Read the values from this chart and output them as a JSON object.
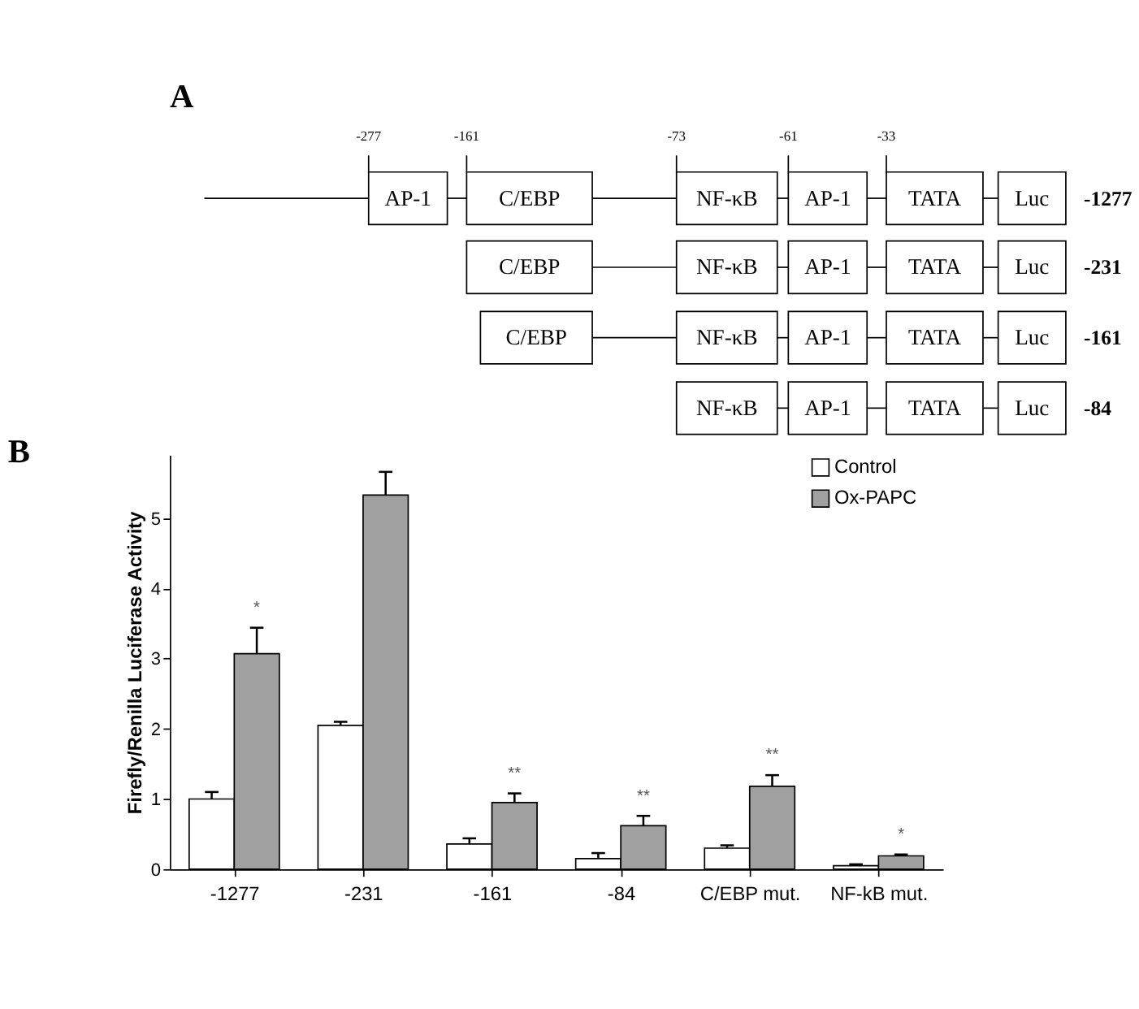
{
  "chart_data": [
    {
      "type": "other",
      "title": "A",
      "annotations": [
        "-277",
        "-161",
        "-73",
        "-61",
        "-33",
        "AP-1",
        "C/EBP",
        "NF-κB",
        "AP-1",
        "TATA",
        "Luc",
        "-1277",
        "C/EBP",
        "NF-κB",
        "AP-1",
        "TATA",
        "Luc",
        "-231",
        "C/EBP",
        "NF-κB",
        "AP-1",
        "TATA",
        "Luc",
        "-161",
        "NF-κB",
        "AP-1",
        "TATA",
        "Luc",
        "-84"
      ]
    },
    {
      "type": "bar",
      "title": "B",
      "ylabel": "Firefly/Renilla Luciferase Activity",
      "categories": [
        "-1277",
        "-231",
        "-161",
        "-84",
        "C/EBP mut.",
        "NF-kB mut."
      ],
      "series": [
        {
          "name": "Control",
          "color": "#ffffff",
          "values": [
            1.0,
            2.05,
            0.36,
            0.15,
            0.3,
            0.05
          ],
          "errors": [
            0.1,
            0.05,
            0.08,
            0.08,
            0.04,
            0.02
          ]
        },
        {
          "name": "Ox-PAPC",
          "color": "#a0a0a0",
          "values": [
            3.07,
            5.33,
            0.95,
            0.62,
            1.18,
            0.19
          ],
          "errors": [
            0.37,
            0.33,
            0.13,
            0.14,
            0.16,
            0.02
          ]
        }
      ],
      "ylim": [
        0,
        5.9
      ],
      "yticks": [
        0,
        1,
        2,
        3,
        4,
        5
      ],
      "grid": false,
      "legend": "top right",
      "annotations": [
        {
          "text": "*",
          "x": "-1277",
          "y": 3.07
        },
        {
          "text": "**",
          "x": "-161",
          "y": 0.95
        },
        {
          "text": "**",
          "x": "-84",
          "y": 0.62
        },
        {
          "text": "**",
          "x": "C/EBP mut.",
          "y": 1.18
        },
        {
          "text": "*",
          "x": "NF-kB mut.",
          "y": 0.19
        }
      ]
    }
  ]
}
